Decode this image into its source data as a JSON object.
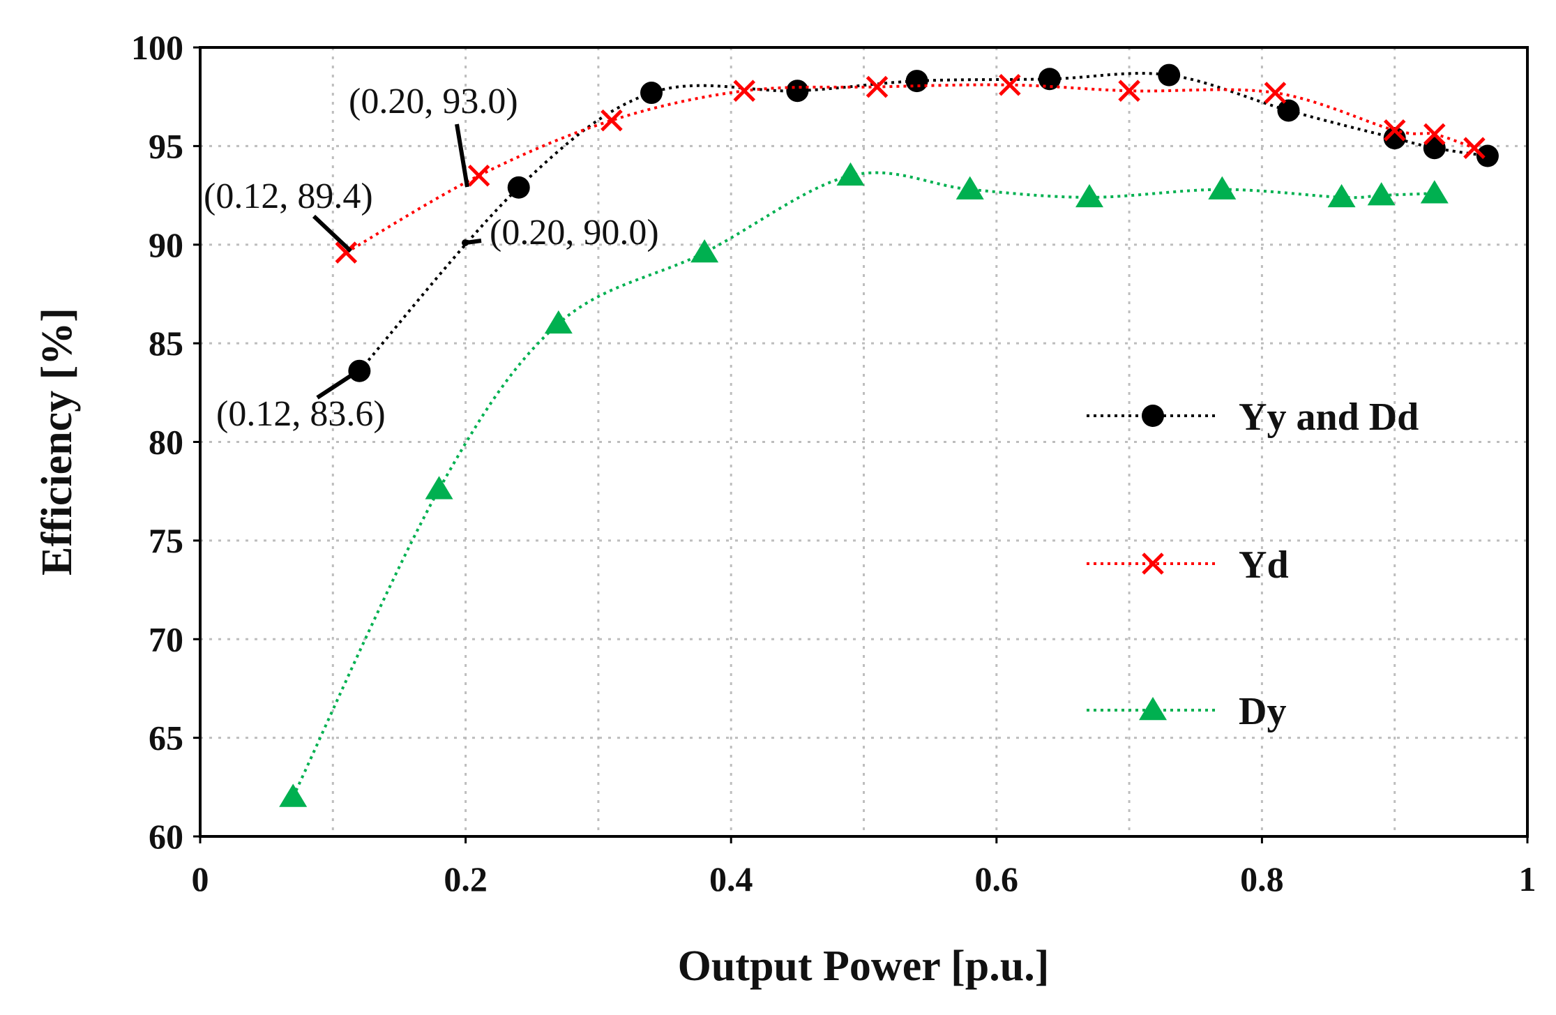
{
  "chart_data": {
    "type": "line",
    "title": "",
    "xlabel": "Output Power [p.u.]",
    "ylabel": "Efficiency [%]",
    "xlim": [
      0,
      1
    ],
    "ylim": [
      60,
      100
    ],
    "xticks": [
      0,
      0.2,
      0.4,
      0.6,
      0.8,
      1
    ],
    "xtick_labels": [
      "0",
      "0.2",
      "0.4",
      "0.6",
      "0.8",
      "1"
    ],
    "yticks": [
      60,
      65,
      70,
      75,
      80,
      85,
      90,
      95,
      100
    ],
    "ytick_labels": [
      "60",
      "65",
      "70",
      "75",
      "80",
      "85",
      "90",
      "95",
      "100"
    ],
    "grid": true,
    "legend_position": "right",
    "series": [
      {
        "name": "Yy and Dd",
        "color": "#000000",
        "marker": "circle",
        "x": [
          0.12,
          0.24,
          0.34,
          0.45,
          0.54,
          0.64,
          0.73,
          0.82,
          0.9,
          0.93,
          0.97
        ],
        "y": [
          83.6,
          92.9,
          97.7,
          97.8,
          98.3,
          98.4,
          98.6,
          96.8,
          95.4,
          94.9,
          94.5
        ]
      },
      {
        "name": "Yd",
        "color": "#ff0000",
        "marker": "x",
        "x": [
          0.11,
          0.21,
          0.31,
          0.41,
          0.51,
          0.61,
          0.7,
          0.81,
          0.9,
          0.93,
          0.96
        ],
        "y": [
          89.6,
          93.5,
          96.3,
          97.8,
          98.0,
          98.1,
          97.8,
          97.7,
          95.8,
          95.6,
          94.9
        ]
      },
      {
        "name": "Dy",
        "color": "#00b050",
        "marker": "triangle",
        "x": [
          0.07,
          0.18,
          0.27,
          0.38,
          0.49,
          0.58,
          0.67,
          0.77,
          0.86,
          0.89,
          0.93
        ],
        "y": [
          62.0,
          77.6,
          86.0,
          89.6,
          93.5,
          92.8,
          92.4,
          92.8,
          92.4,
          92.5,
          92.6
        ]
      }
    ],
    "annotations": [
      {
        "text": "(0.20, 93.0)",
        "point": [
          0.2,
          93.0
        ]
      },
      {
        "text": "(0.12, 89.4)",
        "point": [
          0.12,
          89.4
        ]
      },
      {
        "text": "(0.20, 90.0)",
        "point": [
          0.2,
          90.0
        ]
      },
      {
        "text": "(0.12, 83.6)",
        "point": [
          0.12,
          83.6
        ]
      }
    ]
  }
}
